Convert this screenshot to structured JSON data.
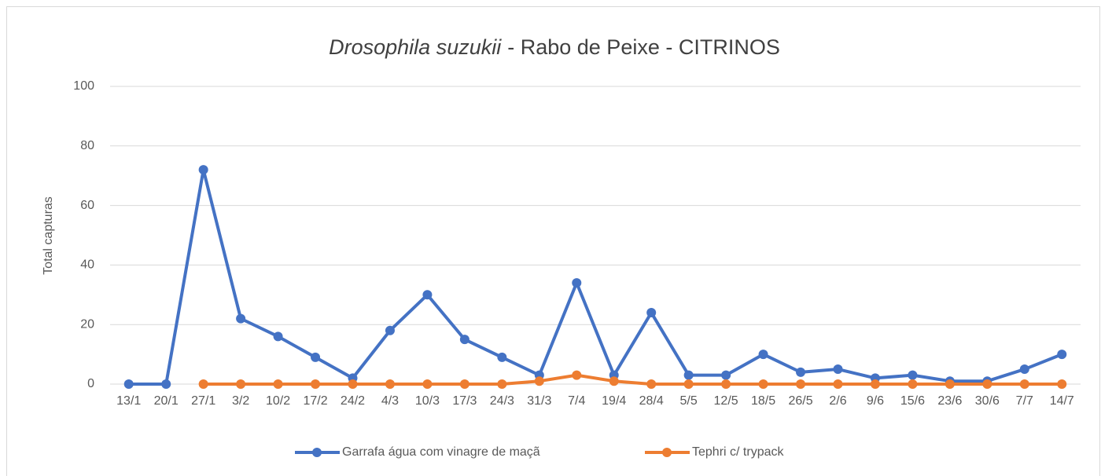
{
  "chart_data": {
    "type": "line",
    "title": [
      "Drosophila suzukii",
      "- Rabo de Peixe - CITRINOS"
    ],
    "y_label": "Total capturas",
    "categories": [
      "13/1",
      "20/1",
      "27/1",
      "3/2",
      "10/2",
      "17/2",
      "24/2",
      "4/3",
      "10/3",
      "17/3",
      "24/3",
      "31/3",
      "7/4",
      "19/4",
      "28/4",
      "5/5",
      "12/5",
      "18/5",
      "26/5",
      "2/6",
      "9/6",
      "15/6",
      "23/6",
      "30/6",
      "7/7",
      "14/7"
    ],
    "series": [
      {
        "name": "Garrafa água com vinagre de maçã",
        "color": "#4472c4",
        "values": [
          0,
          0,
          72,
          22,
          16,
          9,
          2,
          18,
          30,
          15,
          9,
          3,
          34,
          3,
          24,
          3,
          3,
          10,
          4,
          5,
          2,
          3,
          1,
          1,
          5,
          10
        ]
      },
      {
        "name": "Tephri c/ trypack",
        "color": "#ed7d31",
        "values": [
          null,
          null,
          0,
          0,
          0,
          0,
          0,
          0,
          0,
          0,
          0,
          1,
          3,
          1,
          0,
          0,
          0,
          0,
          0,
          0,
          0,
          0,
          0,
          0,
          0,
          0
        ]
      }
    ],
    "ylim": [
      0,
      100
    ],
    "yticks": [
      0,
      20,
      40,
      60,
      80,
      100
    ],
    "grid": true,
    "legend": "bottom"
  }
}
